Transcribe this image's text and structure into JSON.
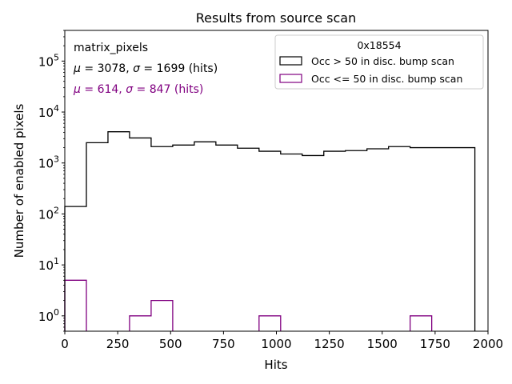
{
  "chart_data": {
    "type": "histogram",
    "title": "Results from source scan",
    "xlabel": "Hits",
    "ylabel": "Number of enabled pixels",
    "xlim": [
      0,
      2000
    ],
    "ylim": [
      0.5,
      400000
    ],
    "yscale": "log",
    "x_ticks": [
      {
        "value": 0,
        "label": "0"
      },
      {
        "value": 250,
        "label": "250"
      },
      {
        "value": 500,
        "label": "500"
      },
      {
        "value": 750,
        "label": "750"
      },
      {
        "value": 1000,
        "label": "1000"
      },
      {
        "value": 1250,
        "label": "1250"
      },
      {
        "value": 1500,
        "label": "1500"
      },
      {
        "value": 1750,
        "label": "1750"
      },
      {
        "value": 2000,
        "label": "2000"
      }
    ],
    "y_ticks": [
      {
        "value": 1,
        "base": "10",
        "exp": "0"
      },
      {
        "value": 10,
        "base": "10",
        "exp": "1"
      },
      {
        "value": 100,
        "base": "10",
        "exp": "2"
      },
      {
        "value": 1000,
        "base": "10",
        "exp": "3"
      },
      {
        "value": 10000,
        "base": "10",
        "exp": "4"
      },
      {
        "value": 100000,
        "base": "10",
        "exp": "5"
      }
    ],
    "bin_edges": [
      0,
      102,
      204,
      306,
      408,
      510,
      612,
      714,
      816,
      918,
      1020,
      1122,
      1224,
      1326,
      1428,
      1530,
      1632,
      1734,
      1836,
      1938
    ],
    "series": [
      {
        "name": "Occ > 50 in disc. bump scan",
        "color": "#000000",
        "values": [
          140,
          2500,
          4100,
          3100,
          2100,
          2250,
          2600,
          2250,
          1950,
          1700,
          1500,
          1400,
          1700,
          1750,
          1900,
          2100,
          2000,
          2000,
          2000
        ]
      },
      {
        "name": "Occ <= 50 in disc. bump scan",
        "color": "#800080",
        "values": [
          5,
          0,
          0,
          1,
          2,
          0,
          0,
          0,
          0,
          1,
          0,
          0,
          0,
          0,
          0,
          0,
          1,
          0,
          0
        ]
      }
    ],
    "legend": {
      "title": "0x18554",
      "location": "upper right"
    },
    "annotations": {
      "name": "matrix_pixels",
      "stats": [
        {
          "mu": "3078",
          "sigma": "1699",
          "unit": "(hits)",
          "color": "#000000"
        },
        {
          "mu": "614",
          "sigma": "847",
          "unit": "(hits)",
          "color": "#800080"
        }
      ]
    }
  }
}
